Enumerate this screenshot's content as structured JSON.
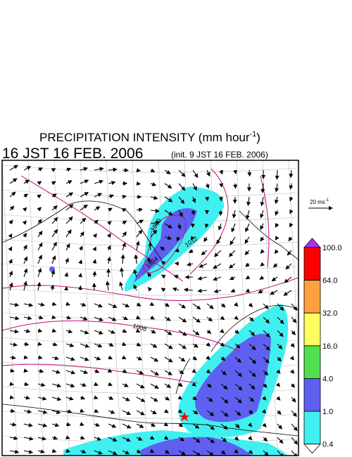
{
  "header": {
    "title": {
      "text": "PRECIPITATION INTENSITY (mm hour",
      "superscript": "-1",
      "close": ")"
    },
    "valid_time": "16 JST 16 FEB. 2006",
    "init_time": "(init. 9 JST 16 FEB. 2006)"
  },
  "wind_scale": {
    "label": "20 ms",
    "superscript": "-1"
  },
  "colorbar": {
    "labels": [
      "100.0",
      "64.0",
      "32.0",
      "16.0",
      "4.0",
      "1.0",
      "0.4"
    ],
    "colors": [
      "#ff0000",
      "#ffa040",
      "#ffff60",
      "#50e050",
      "#6060f0",
      "#40f0f0"
    ],
    "top_triangle": "#b030f0",
    "bottom_triangle": "#ffffff"
  },
  "contour_labels": [
    "1000",
    "1004",
    "1008",
    "1012"
  ]
}
